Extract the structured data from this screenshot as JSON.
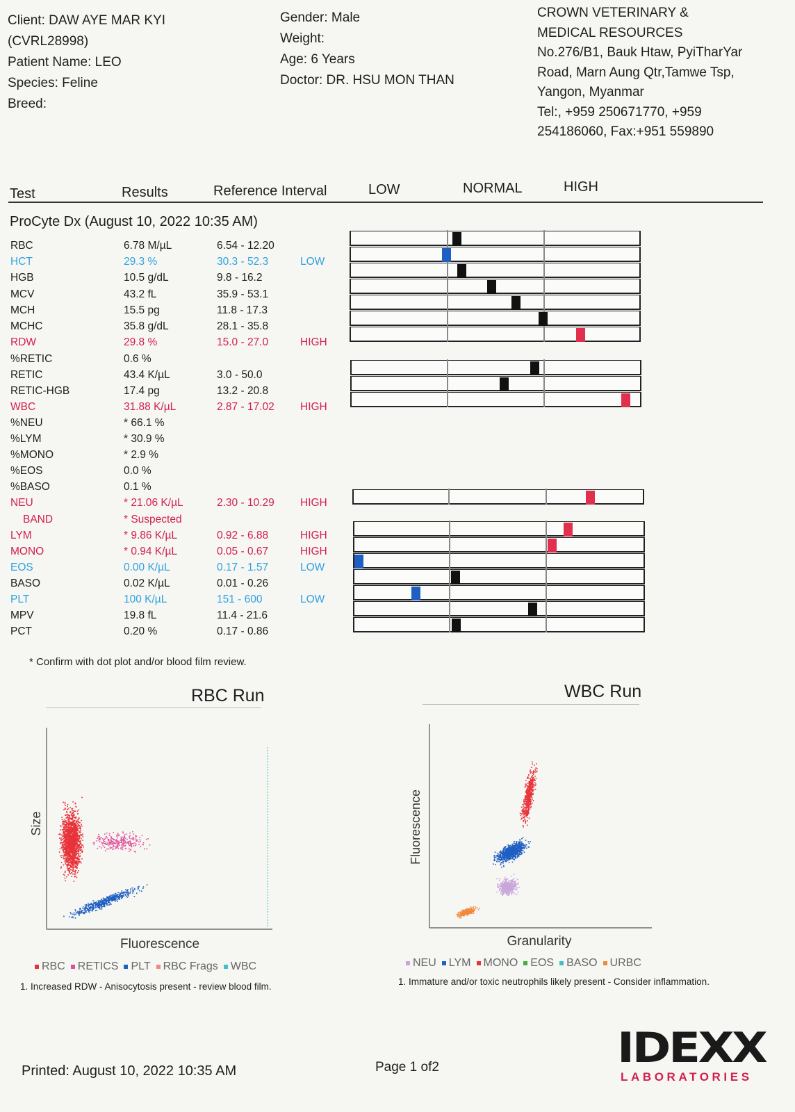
{
  "client": {
    "client_line": "Client: DAW AYE MAR KYI",
    "client_id": "(CVRL28998)",
    "patient": "Patient Name: LEO",
    "species": "Species: Feline",
    "breed": "Breed:"
  },
  "patient_info": {
    "gender": "Gender: Male",
    "weight": "Weight:",
    "age": "Age: 6 Years",
    "doctor": "Doctor: DR. HSU MON THAN"
  },
  "clinic": {
    "line1": "CROWN VETERINARY &",
    "line2": "MEDICAL RESOURCES",
    "line3": "No.276/B1, Bauk Htaw, PyiTharYar",
    "line4": "Road, Marn Aung Qtr,Tamwe Tsp,",
    "line5": "Yangon, Myanmar",
    "line6": "Tel:, +959 250671770, +959",
    "line7": "254186060, Fax:+951 559890"
  },
  "table_header": {
    "test": "Test",
    "results": "Results",
    "reference": "Reference Interval",
    "low": "LOW",
    "normal": "NORMAL",
    "high": "HIGH"
  },
  "section_title": "ProCyte Dx (August 10, 2022 10:35 AM)",
  "rows": [
    {
      "name": "RBC",
      "result": "6.78 M/µL",
      "ref": "6.54 - 12.20",
      "flag": "",
      "status": "normal",
      "level": 0.06
    },
    {
      "name": "HCT",
      "result": "29.3 %",
      "ref": "30.3 - 52.3",
      "flag": "LOW",
      "status": "low",
      "level": -0.05
    },
    {
      "name": "HGB",
      "result": "10.5 g/dL",
      "ref": "9.8 - 16.2",
      "flag": "",
      "status": "normal",
      "level": 0.11
    },
    {
      "name": "MCV",
      "result": "43.2 fL",
      "ref": "35.9 - 53.1",
      "flag": "",
      "status": "normal",
      "level": 0.42
    },
    {
      "name": "MCH",
      "result": "15.5 pg",
      "ref": "11.8 - 17.3",
      "flag": "",
      "status": "normal",
      "level": 0.67
    },
    {
      "name": "MCHC",
      "result": "35.8 g/dL",
      "ref": "28.1 - 35.8",
      "flag": "",
      "status": "normal",
      "level": 0.95
    },
    {
      "name": "RDW",
      "result": "29.8 %",
      "ref": "15.0 - 27.0",
      "flag": "HIGH",
      "status": "high",
      "level": 0.33
    },
    {
      "name": "%RETIC",
      "result": "0.6 %",
      "ref": "",
      "flag": "",
      "status": "none"
    },
    {
      "name": "RETIC",
      "result": "43.4 K/µL",
      "ref": "3.0 - 50.0",
      "flag": "",
      "status": "normal",
      "level": 0.86
    },
    {
      "name": "RETIC-HGB",
      "result": "17.4 pg",
      "ref": "13.2 - 20.8",
      "flag": "",
      "status": "normal",
      "level": 0.55
    },
    {
      "name": "WBC",
      "result": "31.88 K/µL",
      "ref": "2.87 - 17.02",
      "flag": "HIGH",
      "status": "high",
      "level": 0.78
    },
    {
      "name": "%NEU",
      "result": "* 66.1 %",
      "ref": "",
      "flag": "",
      "status": "none"
    },
    {
      "name": "%LYM",
      "result": "* 30.9 %",
      "ref": "",
      "flag": "",
      "status": "none"
    },
    {
      "name": "%MONO",
      "result": "* 2.9 %",
      "ref": "",
      "flag": "",
      "status": "none"
    },
    {
      "name": "%EOS",
      "result": "0.0 %",
      "ref": "",
      "flag": "",
      "status": "none"
    },
    {
      "name": "%BASO",
      "result": "0.1 %",
      "ref": "",
      "flag": "",
      "status": "none"
    },
    {
      "name": "NEU",
      "result": "* 21.06 K/µL",
      "ref": "2.30 - 10.29",
      "flag": "HIGH",
      "status": "high",
      "level": 0.4
    },
    {
      "name": "BAND",
      "result": "* Suspected",
      "ref": "",
      "flag": "",
      "status": "band"
    },
    {
      "name": "LYM",
      "result": "* 9.86 K/µL",
      "ref": "0.92 - 6.88",
      "flag": "HIGH",
      "status": "high",
      "level": 0.18
    },
    {
      "name": "MONO",
      "result": "* 0.94 K/µL",
      "ref": "0.05 - 0.67",
      "flag": "HIGH",
      "status": "high",
      "level": 0.02
    },
    {
      "name": "EOS",
      "result": "0.00 K/µL",
      "ref": "0.17 - 1.57",
      "flag": "LOW",
      "status": "low",
      "level": -1.0
    },
    {
      "name": "BASO",
      "result": "0.02 K/µL",
      "ref": "0.01 - 0.26",
      "flag": "",
      "status": "normal",
      "level": 0.02
    },
    {
      "name": "PLT",
      "result": "100 K/µL",
      "ref": "151 - 600",
      "flag": "LOW",
      "status": "low",
      "level": -0.4
    },
    {
      "name": "MPV",
      "result": "19.8 fL",
      "ref": "11.4 - 21.6",
      "flag": "",
      "status": "normal",
      "level": 0.82
    },
    {
      "name": "PCT",
      "result": "0.20 %",
      "ref": "0.17 - 0.86",
      "flag": "",
      "status": "normal",
      "level": 0.03
    }
  ],
  "footnote": "* Confirm with dot plot and/or blood film review.",
  "rbc_plot": {
    "title": "RBC Run",
    "y_label": "Size",
    "x_label": "Fluorescence",
    "legend": [
      {
        "label": "RBC",
        "color": "#e8323a"
      },
      {
        "label": "RETICS",
        "color": "#e0509a"
      },
      {
        "label": "PLT",
        "color": "#1f5fc2"
      },
      {
        "label": "RBC Frags",
        "color": "#f08a7a"
      },
      {
        "label": "WBC",
        "color": "#40c0c8"
      }
    ],
    "note": "1. Increased RDW - Anisocytosis present - review blood film."
  },
  "wbc_plot": {
    "title": "WBC Run",
    "y_label": "Fluorescence",
    "x_label": "Granularity",
    "legend": [
      {
        "label": "NEU",
        "color": "#c8a6dc"
      },
      {
        "label": "LYM",
        "color": "#1f5fc2"
      },
      {
        "label": "MONO",
        "color": "#e8323a"
      },
      {
        "label": "EOS",
        "color": "#40b040"
      },
      {
        "label": "BASO",
        "color": "#40c0c8"
      },
      {
        "label": "URBC",
        "color": "#f08a3a"
      }
    ],
    "note": "1. Immature and/or toxic neutrophils likely present - Consider inflammation."
  },
  "footer": {
    "printed": "Printed: August 10, 2022 10:35 AM",
    "page": "Page 1 of2"
  },
  "logo": {
    "brand": "IDEXX",
    "sub": "LABORATORIES"
  },
  "colors": {
    "high": "#d21f4b",
    "low": "#2fa3e0",
    "marker_high": "#e0304e",
    "marker_low": "#1f5fc2",
    "marker_normal": "#111111"
  }
}
